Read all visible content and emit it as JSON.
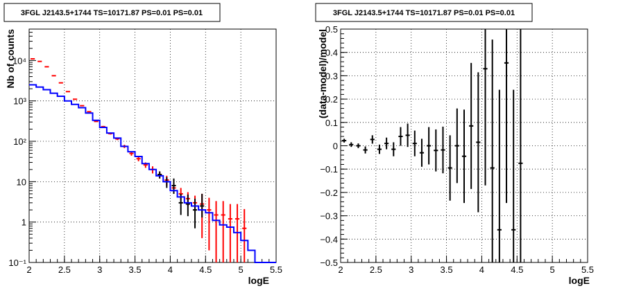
{
  "chart_data": [
    {
      "type": "line",
      "title": "3FGL J2143.5+1744 TS=10171.87 PS=0.01 PS=0.01",
      "xlabel": "logE",
      "ylabel": "Nb of counts",
      "xlim": [
        2,
        5.5
      ],
      "ylim": [
        0.1,
        60000
      ],
      "y_scale": "log",
      "grid": true,
      "x_ticks": [
        2,
        2.5,
        3,
        3.5,
        4,
        4.5,
        5,
        5.5
      ],
      "x_tick_labels": [
        "2",
        "2.5",
        "3",
        "3.5",
        "4",
        "4.5",
        "5",
        "5.5"
      ],
      "y_ticks": [
        0.1,
        1,
        10,
        100,
        1000,
        10000
      ],
      "y_tick_labels": [
        "10⁻¹",
        "1",
        "10",
        "10²",
        "10³",
        "10⁴"
      ],
      "bin_edges": [
        2.0,
        2.1,
        2.2,
        2.3,
        2.4,
        2.5,
        2.6,
        2.7,
        2.8,
        2.9,
        3.0,
        3.1,
        3.2,
        3.3,
        3.4,
        3.5,
        3.6,
        3.7,
        3.8,
        3.9,
        4.0,
        4.1,
        4.2,
        4.3,
        4.4,
        4.5,
        4.6,
        4.7,
        4.8,
        4.9,
        5.0,
        5.1,
        5.2,
        5.3,
        5.4,
        5.5
      ],
      "series": [
        {
          "color": "#ff0000",
          "style": "points-with-errors",
          "x": [
            2.05,
            2.15,
            2.25,
            2.35,
            2.45,
            2.55,
            2.65,
            2.75,
            2.85,
            2.95,
            3.05,
            3.15,
            3.25,
            3.35,
            3.45,
            3.55,
            3.65,
            3.75,
            3.85,
            3.95,
            4.05,
            4.15,
            4.25,
            4.35,
            4.45,
            4.55,
            4.65,
            4.75,
            4.85,
            4.95,
            5.05
          ],
          "y": [
            11000,
            9500,
            7000,
            4200,
            2800,
            1700,
            1100,
            760,
            540,
            310,
            230,
            155,
            115,
            75,
            50,
            37,
            26,
            20,
            15,
            11,
            7,
            5,
            3.8,
            3,
            2.8,
            2,
            1.5,
            1.5,
            1.2,
            1.2,
            0.7
          ],
          "y_err_low": [
            0,
            0,
            0,
            0,
            0,
            0,
            0,
            0,
            0,
            0,
            10,
            8,
            8,
            7,
            6,
            5,
            4,
            4,
            3,
            3,
            2,
            1.5,
            1.3,
            1,
            2.4,
            1.8,
            1.4,
            1.4,
            1.1,
            1.1,
            0.6
          ],
          "y_err_high": [
            0,
            0,
            0,
            0,
            0,
            0,
            0,
            0,
            0,
            0,
            10,
            8,
            8,
            7,
            6,
            5,
            4,
            4,
            3,
            3,
            2.5,
            2,
            1.7,
            1.5,
            2.2,
            2,
            1.8,
            1.8,
            1.6,
            1.6,
            1.4
          ]
        },
        {
          "color": "#000000",
          "style": "points-with-errors",
          "x": [
            3.85,
            3.95,
            4.05,
            4.15,
            4.25,
            4.35,
            4.45
          ],
          "y": [
            15,
            10,
            8,
            3,
            2.8,
            2,
            2.5
          ],
          "y_err_low": [
            3,
            3,
            3,
            1.5,
            1.4,
            1.3,
            1.2
          ],
          "y_err_high": [
            3,
            3,
            4,
            2,
            2,
            1.8,
            2.5
          ]
        },
        {
          "color": "#0000ff",
          "style": "step",
          "y": [
            2500,
            2200,
            1900,
            1550,
            1300,
            1000,
            820,
            680,
            500,
            330,
            220,
            160,
            120,
            75,
            55,
            42,
            28,
            20,
            14,
            10,
            6,
            4.2,
            3,
            2.5,
            2,
            1.7,
            1.1,
            0.85,
            0.75,
            0.55,
            0.35,
            0.2,
            0.1,
            0.1,
            0.1
          ]
        }
      ]
    },
    {
      "type": "scatter",
      "title": "3FGL J2143.5+1744 TS=10171.87 PS=0.01 PS=0.01",
      "xlabel": "logE",
      "ylabel": "(data-model)/model",
      "xlim": [
        2,
        5.5
      ],
      "ylim": [
        -0.5,
        0.5
      ],
      "grid": true,
      "x_ticks": [
        2,
        2.5,
        3,
        3.5,
        4,
        4.5,
        5,
        5.5
      ],
      "x_tick_labels": [
        "2",
        "2.5",
        "3",
        "3.5",
        "4",
        "4.5",
        "5",
        "5.5"
      ],
      "y_ticks": [
        -0.5,
        -0.4,
        -0.3,
        -0.2,
        -0.1,
        0,
        0.1,
        0.2,
        0.3,
        0.4,
        0.5
      ],
      "y_tick_labels": [
        "−0.5",
        "−0.4",
        "−0.3",
        "−0.2",
        "−0.1",
        "0",
        "0.1",
        "0.2",
        "0.3",
        "0.4",
        "0.5"
      ],
      "series": [
        {
          "color": "#000000",
          "style": "points-with-errors",
          "x": [
            2.05,
            2.15,
            2.25,
            2.35,
            2.45,
            2.55,
            2.65,
            2.75,
            2.85,
            2.95,
            3.05,
            3.15,
            3.25,
            3.35,
            3.45,
            3.55,
            3.65,
            3.75,
            3.85,
            3.95,
            4.05,
            4.15,
            4.25,
            4.35,
            4.45,
            4.55
          ],
          "y": [
            0.022,
            0.005,
            0.0,
            -0.018,
            0.027,
            -0.015,
            0.01,
            -0.015,
            0.04,
            0.045,
            0.01,
            -0.03,
            0.0,
            -0.02,
            -0.018,
            -0.095,
            0.0,
            -0.045,
            0.085,
            0.015,
            0.33,
            -0.095,
            -0.36,
            0.355,
            -0.36,
            -0.075
          ],
          "y_err": [
            0.008,
            0.01,
            0.01,
            0.015,
            0.018,
            0.02,
            0.025,
            0.03,
            0.04,
            0.05,
            0.055,
            0.06,
            0.08,
            0.09,
            0.1,
            0.14,
            0.16,
            0.2,
            0.27,
            0.3,
            0.5,
            0.55,
            0.6,
            0.6,
            0.6,
            0.6
          ]
        }
      ]
    }
  ]
}
